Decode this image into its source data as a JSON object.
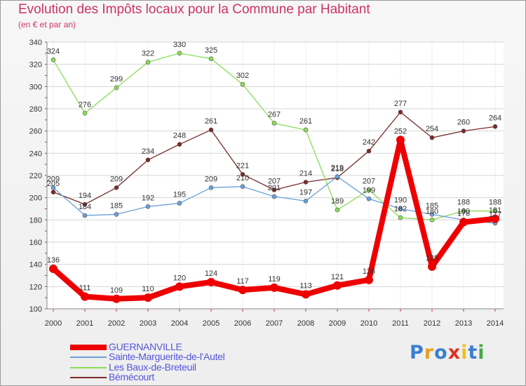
{
  "chart_data": {
    "type": "line",
    "title": "Evolution des Impôts locaux pour la Commune par Habitant",
    "subtitle": "(en € et par an)",
    "xlabel": "",
    "ylabel": "",
    "x": [
      "2000",
      "2001",
      "2002",
      "2003",
      "2004",
      "2005",
      "2006",
      "2007",
      "2008",
      "2009",
      "2010",
      "2011",
      "2012",
      "2013",
      "2014"
    ],
    "yticks": [
      100,
      120,
      140,
      160,
      180,
      200,
      220,
      240,
      260,
      280,
      300,
      320,
      340
    ],
    "ylim": [
      100,
      340
    ],
    "grid": true,
    "legend_position": "bottom-left",
    "series": [
      {
        "name": "GUERNANVILLE",
        "color": "#ee0000",
        "values": [
          136,
          111,
          109,
          110,
          120,
          124,
          117,
          119,
          113,
          121,
          126,
          252,
          138,
          178,
          181
        ]
      },
      {
        "name": "Sainte-Marguerite-de-l'Autel",
        "color": "#6aa0d8",
        "values": [
          209,
          184,
          185,
          192,
          195,
          209,
          210,
          201,
          197,
          219,
          199,
          190,
          185,
          180,
          177
        ]
      },
      {
        "name": "Les Baux-de-Breteuil",
        "color": "#88dd55",
        "values": [
          324,
          276,
          299,
          322,
          330,
          325,
          302,
          267,
          261,
          189,
          207,
          182,
          180,
          188,
          188
        ]
      },
      {
        "name": "Bémécourt",
        "color": "#7a2a2a",
        "values": [
          205,
          194,
          209,
          234,
          248,
          261,
          221,
          207,
          214,
          218,
          242,
          277,
          254,
          260,
          264
        ]
      }
    ]
  },
  "logo": {
    "text": "Proxiti"
  }
}
